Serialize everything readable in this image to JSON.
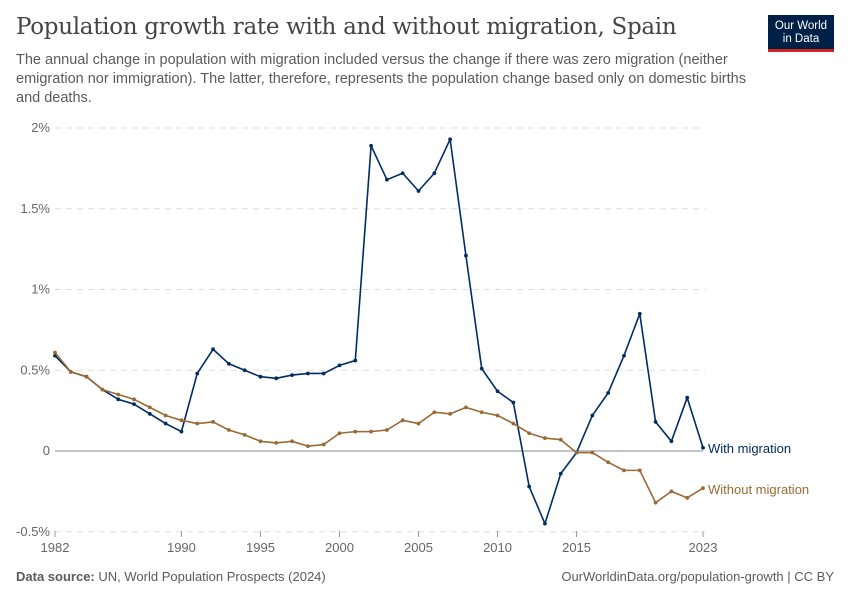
{
  "header": {
    "title": "Population growth rate with and without migration, Spain",
    "subtitle": "The annual change in population with migration included versus the change if there was zero migration (neither emigration nor immigration). The latter, therefore, represents the population change based only on domestic births and deaths.",
    "logo_line1": "Our World",
    "logo_line2": "in Data"
  },
  "footer": {
    "source_label": "Data source:",
    "source_text": "UN, World Population Prospects (2024)",
    "link": "OurWorldinData.org/population-growth | CC BY"
  },
  "chart_data": {
    "type": "line",
    "title": "Population growth rate with and without migration, Spain",
    "ylim": [
      -0.5,
      2
    ],
    "xlim": [
      1982,
      2023
    ],
    "y_ticks": [
      {
        "v": 2,
        "label": "2%"
      },
      {
        "v": 1.5,
        "label": "1.5%"
      },
      {
        "v": 1,
        "label": "1%"
      },
      {
        "v": 0.5,
        "label": "0.5%"
      },
      {
        "v": 0,
        "label": "0"
      },
      {
        "v": -0.5,
        "label": "-0.5%"
      }
    ],
    "x_ticks": [
      {
        "v": 1982,
        "label": "1982"
      },
      {
        "v": 1990,
        "label": "1990"
      },
      {
        "v": 1995,
        "label": "1995"
      },
      {
        "v": 2000,
        "label": "2000"
      },
      {
        "v": 2005,
        "label": "2005"
      },
      {
        "v": 2010,
        "label": "2010"
      },
      {
        "v": 2015,
        "label": "2015"
      },
      {
        "v": 2023,
        "label": "2023"
      }
    ],
    "grid": true,
    "legend": "inline-right",
    "x": [
      1982,
      1983,
      1984,
      1985,
      1986,
      1987,
      1988,
      1989,
      1990,
      1991,
      1992,
      1993,
      1994,
      1995,
      1996,
      1997,
      1998,
      1999,
      2000,
      2001,
      2002,
      2003,
      2004,
      2005,
      2006,
      2007,
      2008,
      2009,
      2010,
      2011,
      2012,
      2013,
      2014,
      2015,
      2016,
      2017,
      2018,
      2019,
      2020,
      2021,
      2022,
      2023
    ],
    "series": [
      {
        "name": "With migration",
        "color": "#002d62",
        "values": [
          0.59,
          0.49,
          0.46,
          0.38,
          0.32,
          0.29,
          0.23,
          0.17,
          0.12,
          0.48,
          0.63,
          0.54,
          0.5,
          0.46,
          0.45,
          0.47,
          0.48,
          0.48,
          0.53,
          0.56,
          1.89,
          1.68,
          1.72,
          1.61,
          1.72,
          1.93,
          1.21,
          0.51,
          0.37,
          0.3,
          -0.22,
          -0.45,
          -0.14,
          -0.01,
          0.22,
          0.36,
          0.59,
          0.85,
          0.18,
          0.06,
          0.33,
          0.02
        ]
      },
      {
        "name": "Without migration",
        "color": "#9a6a34",
        "values": [
          0.61,
          0.49,
          0.46,
          0.38,
          0.35,
          0.32,
          0.27,
          0.22,
          0.19,
          0.17,
          0.18,
          0.13,
          0.1,
          0.06,
          0.05,
          0.06,
          0.03,
          0.04,
          0.11,
          0.12,
          0.12,
          0.13,
          0.19,
          0.17,
          0.24,
          0.23,
          0.27,
          0.24,
          0.22,
          0.17,
          0.11,
          0.08,
          0.07,
          -0.01,
          -0.01,
          -0.07,
          -0.12,
          -0.12,
          -0.32,
          -0.25,
          -0.29,
          -0.23
        ]
      }
    ]
  }
}
